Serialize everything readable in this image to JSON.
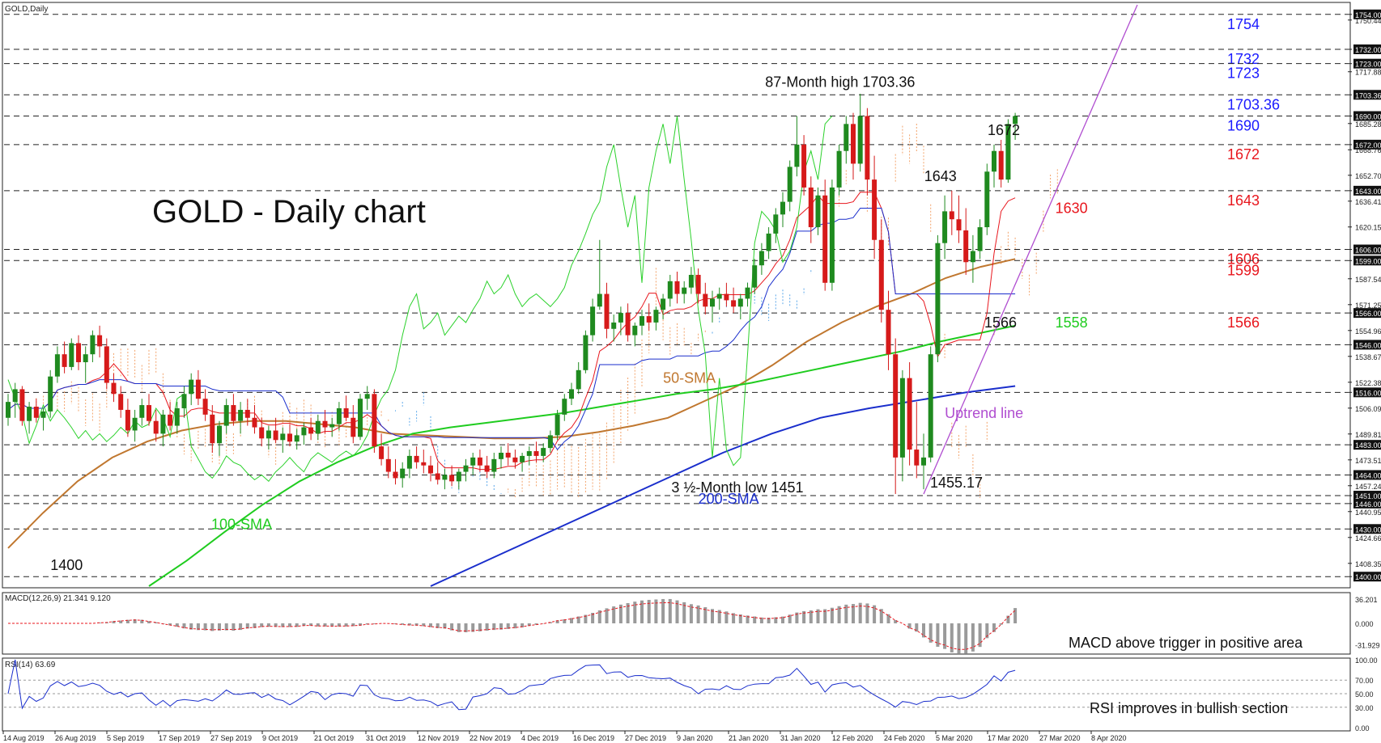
{
  "chart_data": {
    "type": "candlestick",
    "symbol_label": "GOLD,Daily",
    "title": "GOLD - Daily chart",
    "price_axis": {
      "ylim": [
        1394,
        1760
      ],
      "tick_labels": [
        "1754.00",
        "1750.44",
        "1732.00",
        "1723.00",
        "1717.88",
        "1703.36",
        "1690.00",
        "1685.28",
        "1672.00",
        "1668.76",
        "1652.70",
        "1643.00",
        "1636.41",
        "1620.15",
        "1606.00",
        "1599.00",
        "1587.54",
        "1571.25",
        "1566.00",
        "1554.96",
        "1546.00",
        "1538.67",
        "1522.38",
        "1516.00",
        "1506.09",
        "1489.81",
        "1483.00",
        "1473.51",
        "1464.00",
        "1457.24",
        "1451.00",
        "1446.00",
        "1440.95",
        "1430.00",
        "1424.66",
        "1408.35",
        "1400.00"
      ]
    },
    "x_labels": [
      "14 Aug 2019",
      "26 Aug 2019",
      "5 Sep 2019",
      "17 Sep 2019",
      "27 Sep 2019",
      "9 Oct 2019",
      "21 Oct 2019",
      "31 Oct 2019",
      "12 Nov 2019",
      "22 Nov 2019",
      "4 Dec 2019",
      "16 Dec 2019",
      "27 Dec 2019",
      "9 Jan 2020",
      "21 Jan 2020",
      "31 Jan 2020",
      "12 Feb 2020",
      "24 Feb 2020",
      "5 Mar 2020",
      "17 Mar 2020",
      "27 Mar 2020",
      "8 Apr 2020"
    ],
    "levels": [
      {
        "value": 1754,
        "label": "1754",
        "color": "#1a1aff"
      },
      {
        "value": 1732,
        "label": "1732",
        "color": "#1a1aff"
      },
      {
        "value": 1723,
        "label": "1723",
        "color": "#1a1aff"
      },
      {
        "value": 1703.36,
        "label": "1703.36",
        "color": "#1a1aff"
      },
      {
        "value": 1690,
        "label": "1690",
        "color": "#1a1aff"
      },
      {
        "value": 1672,
        "label": "1672",
        "color": "#e8161d"
      },
      {
        "value": 1643,
        "label": "1643",
        "color": "#e8161d"
      },
      {
        "value": 1606,
        "label": "1606",
        "color": "#e8161d"
      },
      {
        "value": 1599,
        "label": "1599",
        "color": "#e8161d"
      },
      {
        "value": 1566,
        "label": "1566",
        "color": "#e8161d"
      },
      {
        "value": 1546,
        "label": "",
        "color": ""
      },
      {
        "value": 1516,
        "label": "",
        "color": ""
      },
      {
        "value": 1483,
        "label": "",
        "color": ""
      },
      {
        "value": 1464,
        "label": "",
        "color": ""
      },
      {
        "value": 1451,
        "label": "",
        "color": ""
      },
      {
        "value": 1446,
        "label": "",
        "color": ""
      },
      {
        "value": 1430,
        "label": "",
        "color": ""
      },
      {
        "value": 1400,
        "label": "",
        "color": ""
      }
    ],
    "candles": [
      [
        1500,
        1515,
        1495,
        1510
      ],
      [
        1510,
        1522,
        1500,
        1518
      ],
      [
        1518,
        1520,
        1495,
        1498
      ],
      [
        1498,
        1510,
        1490,
        1507
      ],
      [
        1507,
        1512,
        1497,
        1500
      ],
      [
        1500,
        1506,
        1492,
        1504
      ],
      [
        1504,
        1530,
        1500,
        1526
      ],
      [
        1526,
        1545,
        1522,
        1540
      ],
      [
        1540,
        1548,
        1528,
        1532
      ],
      [
        1532,
        1550,
        1530,
        1547
      ],
      [
        1547,
        1552,
        1530,
        1535
      ],
      [
        1535,
        1545,
        1522,
        1540
      ],
      [
        1540,
        1555,
        1535,
        1552
      ],
      [
        1552,
        1558,
        1538,
        1545
      ],
      [
        1545,
        1550,
        1518,
        1522
      ],
      [
        1522,
        1528,
        1510,
        1515
      ],
      [
        1515,
        1520,
        1500,
        1505
      ],
      [
        1505,
        1512,
        1488,
        1492
      ],
      [
        1492,
        1505,
        1485,
        1500
      ],
      [
        1500,
        1512,
        1495,
        1508
      ],
      [
        1508,
        1515,
        1495,
        1498
      ],
      [
        1498,
        1505,
        1485,
        1490
      ],
      [
        1490,
        1505,
        1482,
        1502
      ],
      [
        1502,
        1510,
        1492,
        1495
      ],
      [
        1495,
        1510,
        1490,
        1506
      ],
      [
        1506,
        1520,
        1500,
        1515
      ],
      [
        1515,
        1528,
        1508,
        1524
      ],
      [
        1524,
        1530,
        1508,
        1512
      ],
      [
        1512,
        1518,
        1498,
        1502
      ],
      [
        1502,
        1508,
        1478,
        1484
      ],
      [
        1484,
        1498,
        1476,
        1495
      ],
      [
        1495,
        1512,
        1490,
        1508
      ],
      [
        1508,
        1515,
        1495,
        1498
      ],
      [
        1498,
        1510,
        1490,
        1505
      ],
      [
        1505,
        1512,
        1495,
        1500
      ],
      [
        1500,
        1508,
        1490,
        1494
      ],
      [
        1494,
        1500,
        1482,
        1487
      ],
      [
        1487,
        1495,
        1480,
        1492
      ],
      [
        1492,
        1500,
        1484,
        1486
      ],
      [
        1486,
        1494,
        1478,
        1490
      ],
      [
        1490,
        1496,
        1482,
        1485
      ],
      [
        1485,
        1493,
        1480,
        1489
      ],
      [
        1489,
        1497,
        1483,
        1494
      ],
      [
        1494,
        1500,
        1486,
        1490
      ],
      [
        1490,
        1502,
        1486,
        1498
      ],
      [
        1498,
        1505,
        1490,
        1494
      ],
      [
        1494,
        1500,
        1488,
        1496
      ],
      [
        1496,
        1510,
        1492,
        1506
      ],
      [
        1506,
        1514,
        1498,
        1500
      ],
      [
        1500,
        1508,
        1484,
        1488
      ],
      [
        1488,
        1515,
        1486,
        1512
      ],
      [
        1512,
        1520,
        1505,
        1515
      ],
      [
        1515,
        1518,
        1478,
        1482
      ],
      [
        1482,
        1490,
        1470,
        1474
      ],
      [
        1474,
        1482,
        1462,
        1466
      ],
      [
        1466,
        1474,
        1458,
        1462
      ],
      [
        1462,
        1472,
        1456,
        1468
      ],
      [
        1468,
        1480,
        1462,
        1476
      ],
      [
        1476,
        1482,
        1468,
        1472
      ],
      [
        1472,
        1480,
        1465,
        1470
      ],
      [
        1470,
        1476,
        1460,
        1465
      ],
      [
        1465,
        1472,
        1458,
        1461
      ],
      [
        1461,
        1468,
        1455,
        1464
      ],
      [
        1464,
        1470,
        1457,
        1460
      ],
      [
        1460,
        1468,
        1455,
        1466
      ],
      [
        1466,
        1474,
        1460,
        1470
      ],
      [
        1470,
        1478,
        1464,
        1475
      ],
      [
        1475,
        1480,
        1466,
        1470
      ],
      [
        1470,
        1476,
        1462,
        1466
      ],
      [
        1466,
        1478,
        1462,
        1474
      ],
      [
        1474,
        1482,
        1468,
        1478
      ],
      [
        1478,
        1484,
        1470,
        1475
      ],
      [
        1475,
        1480,
        1468,
        1472
      ],
      [
        1472,
        1478,
        1466,
        1476
      ],
      [
        1476,
        1482,
        1470,
        1479
      ],
      [
        1479,
        1485,
        1472,
        1476
      ],
      [
        1476,
        1484,
        1472,
        1481
      ],
      [
        1481,
        1492,
        1478,
        1489
      ],
      [
        1489,
        1505,
        1486,
        1502
      ],
      [
        1502,
        1515,
        1498,
        1512
      ],
      [
        1512,
        1522,
        1508,
        1518
      ],
      [
        1518,
        1535,
        1515,
        1530
      ],
      [
        1530,
        1555,
        1528,
        1552
      ],
      [
        1552,
        1575,
        1548,
        1570
      ],
      [
        1570,
        1612,
        1568,
        1578
      ],
      [
        1578,
        1585,
        1550,
        1556
      ],
      [
        1556,
        1565,
        1548,
        1560
      ],
      [
        1560,
        1570,
        1552,
        1566
      ],
      [
        1566,
        1572,
        1548,
        1552
      ],
      [
        1552,
        1560,
        1545,
        1558
      ],
      [
        1558,
        1568,
        1552,
        1564
      ],
      [
        1564,
        1572,
        1555,
        1560
      ],
      [
        1560,
        1570,
        1555,
        1568
      ],
      [
        1568,
        1578,
        1562,
        1575
      ],
      [
        1575,
        1590,
        1570,
        1586
      ],
      [
        1586,
        1592,
        1572,
        1578
      ],
      [
        1578,
        1586,
        1572,
        1582
      ],
      [
        1582,
        1595,
        1578,
        1590
      ],
      [
        1590,
        1594,
        1572,
        1578
      ],
      [
        1578,
        1585,
        1565,
        1570
      ],
      [
        1570,
        1580,
        1560,
        1575
      ],
      [
        1575,
        1582,
        1568,
        1578
      ],
      [
        1578,
        1585,
        1570,
        1574
      ],
      [
        1574,
        1582,
        1566,
        1570
      ],
      [
        1570,
        1578,
        1562,
        1575
      ],
      [
        1575,
        1585,
        1570,
        1582
      ],
      [
        1582,
        1600,
        1578,
        1596
      ],
      [
        1596,
        1610,
        1590,
        1605
      ],
      [
        1605,
        1620,
        1600,
        1616
      ],
      [
        1616,
        1632,
        1610,
        1628
      ],
      [
        1628,
        1642,
        1620,
        1636
      ],
      [
        1636,
        1662,
        1630,
        1658
      ],
      [
        1658,
        1690,
        1652,
        1672
      ],
      [
        1672,
        1678,
        1640,
        1645
      ],
      [
        1645,
        1652,
        1610,
        1620
      ],
      [
        1620,
        1645,
        1615,
        1640
      ],
      [
        1640,
        1650,
        1580,
        1585
      ],
      [
        1585,
        1650,
        1580,
        1645
      ],
      [
        1645,
        1672,
        1640,
        1668
      ],
      [
        1668,
        1690,
        1660,
        1685
      ],
      [
        1685,
        1692,
        1650,
        1660
      ],
      [
        1660,
        1704,
        1655,
        1690
      ],
      [
        1690,
        1695,
        1640,
        1650
      ],
      [
        1650,
        1665,
        1600,
        1612
      ],
      [
        1612,
        1625,
        1560,
        1568
      ],
      [
        1568,
        1580,
        1530,
        1540
      ],
      [
        1540,
        1550,
        1452,
        1475
      ],
      [
        1475,
        1530,
        1460,
        1525
      ],
      [
        1525,
        1535,
        1470,
        1480
      ],
      [
        1480,
        1510,
        1462,
        1470
      ],
      [
        1470,
        1490,
        1455,
        1475
      ],
      [
        1475,
        1545,
        1472,
        1540
      ],
      [
        1540,
        1615,
        1535,
        1610
      ],
      [
        1610,
        1640,
        1600,
        1630
      ],
      [
        1630,
        1643,
        1615,
        1625
      ],
      [
        1625,
        1640,
        1610,
        1618
      ],
      [
        1618,
        1632,
        1590,
        1598
      ],
      [
        1598,
        1615,
        1585,
        1605
      ],
      [
        1605,
        1625,
        1600,
        1620
      ],
      [
        1620,
        1660,
        1615,
        1655
      ],
      [
        1655,
        1672,
        1645,
        1668
      ],
      [
        1668,
        1675,
        1645,
        1650
      ],
      [
        1650,
        1688,
        1648,
        1685
      ],
      [
        1685,
        1692,
        1675,
        1690
      ]
    ],
    "series": [
      {
        "name": "50-SMA",
        "color": "#c0772f",
        "start": 0,
        "values": [
          1418,
          1440,
          1460,
          1475,
          1485,
          1492,
          1496,
          1498,
          1498,
          1496,
          1494,
          1490,
          1489,
          1488,
          1487,
          1487,
          1488,
          1491,
          1495,
          1500,
          1510,
          1520,
          1533,
          1548,
          1560,
          1570,
          1578,
          1588,
          1595,
          1600
        ]
      },
      {
        "name": "100-SMA",
        "color": "#1fcc1f",
        "start": 20,
        "values": [
          1394,
          1410,
          1428,
          1445,
          1460,
          1472,
          1482,
          1490,
          1494,
          1497,
          1500,
          1503,
          1507,
          1511,
          1515,
          1518,
          1522,
          1527,
          1532,
          1537,
          1542,
          1548,
          1553,
          1558
        ]
      },
      {
        "name": "200-SMA",
        "color": "#1a2ecc",
        "start": 60,
        "values": [
          1394,
          1408,
          1422,
          1436,
          1450,
          1464,
          1478,
          1490,
          1500,
          1506,
          1511,
          1516,
          1520
        ]
      }
    ],
    "ichimoku_cloud": {
      "span_a_color": "#f3a46b",
      "span_b_color": "#5aa7ea"
    },
    "annotations": [
      {
        "text": "87-Month high 1703.36",
        "x_index": 119,
        "price": 1703.36
      },
      {
        "text": "1672",
        "x_index": 140,
        "price": 1672
      },
      {
        "text": "1643",
        "x_index": 131,
        "price": 1643
      },
      {
        "text": "1630",
        "x_index": 148,
        "price": 1630
      },
      {
        "text": "1566",
        "x_index": 140,
        "price": 1566
      },
      {
        "text": "1558",
        "x_index": 148,
        "price": 1558
      },
      {
        "text": "50-SMA",
        "x_index": 93,
        "price": 1522
      },
      {
        "text": "100-SMA",
        "x_index": 30,
        "price": 1430
      },
      {
        "text": "200-SMA",
        "x_index": 98,
        "price": 1446
      },
      {
        "text": "Uptrend line",
        "x_index": 133,
        "price": 1500
      },
      {
        "text": "3 ½-Month low 1451",
        "x_index": 112,
        "price": 1451
      },
      {
        "text": "1455.17",
        "x_index": 130,
        "price": 1455.17
      },
      {
        "text": "1400",
        "x_index": 6,
        "price": 1400
      }
    ],
    "macd": {
      "label": "MACD(12,26,9) 21.341 9.120",
      "ylim": [
        -31.92,
        36.2
      ],
      "tick_labels": [
        "36.201",
        "0.000",
        "-31.929"
      ],
      "annotation": "MACD above trigger in positive area"
    },
    "rsi": {
      "label": "RSI(14) 63.69",
      "ylim": [
        0,
        100
      ],
      "tick_labels": [
        "100.00",
        "70.00",
        "50.00",
        "30.00",
        "0.00"
      ],
      "annotation": "RSI improves in bullish section"
    }
  }
}
